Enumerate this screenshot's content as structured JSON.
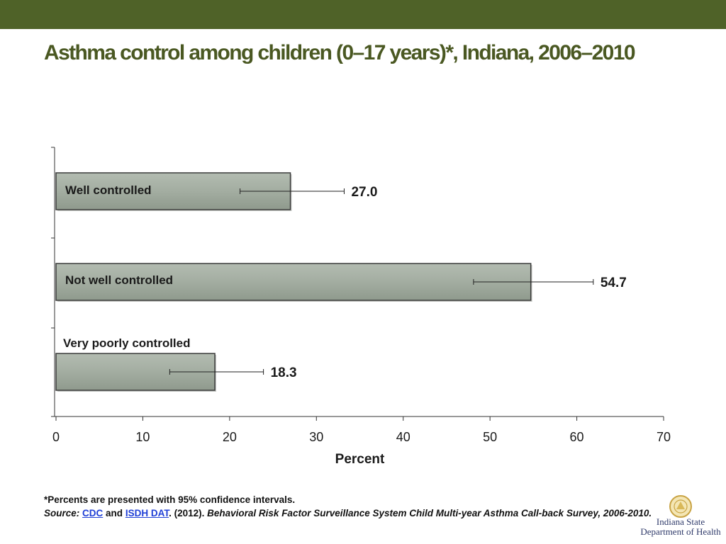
{
  "slide": {
    "title": "Asthma control among children (0–17 years)*, Indiana, 2006–2010",
    "footnote": "*Percents are presented with 95% confidence intervals.",
    "source_label": "Source:",
    "source_link1": "CDC",
    "source_and": "and",
    "source_link2": "ISDH DAT",
    "source_year": ". (2012).",
    "source_title": "Behavioral Risk Factor Surveillance System Child Multi-year Asthma Call-back Survey, 2006-2010",
    "source_end": ".",
    "logo_line1": "Indiana State",
    "logo_line2": "Department of Health"
  },
  "colors": {
    "header_band": "#4f6228",
    "title": "#4a5822",
    "bar_fill": "#a3ada1",
    "bar_edge": "#3b3b3b",
    "link": "#1f3fd6"
  },
  "chart_data": {
    "type": "bar",
    "orientation": "horizontal",
    "categories": [
      "Well controlled",
      "Not well controlled",
      "Very poorly controlled"
    ],
    "values": [
      27.0,
      54.7,
      18.3
    ],
    "value_labels": [
      "27.0",
      "54.7",
      "18.3"
    ],
    "ci_lower": [
      21.2,
      48.1,
      13.1
    ],
    "ci_upper": [
      33.2,
      61.9,
      23.9
    ],
    "xlabel": "Percent",
    "ylabel": "",
    "xlim": [
      0,
      70
    ],
    "xticks": [
      "0",
      "10",
      "20",
      "30",
      "40",
      "50",
      "60",
      "70"
    ],
    "grid": false,
    "legend": "none"
  }
}
